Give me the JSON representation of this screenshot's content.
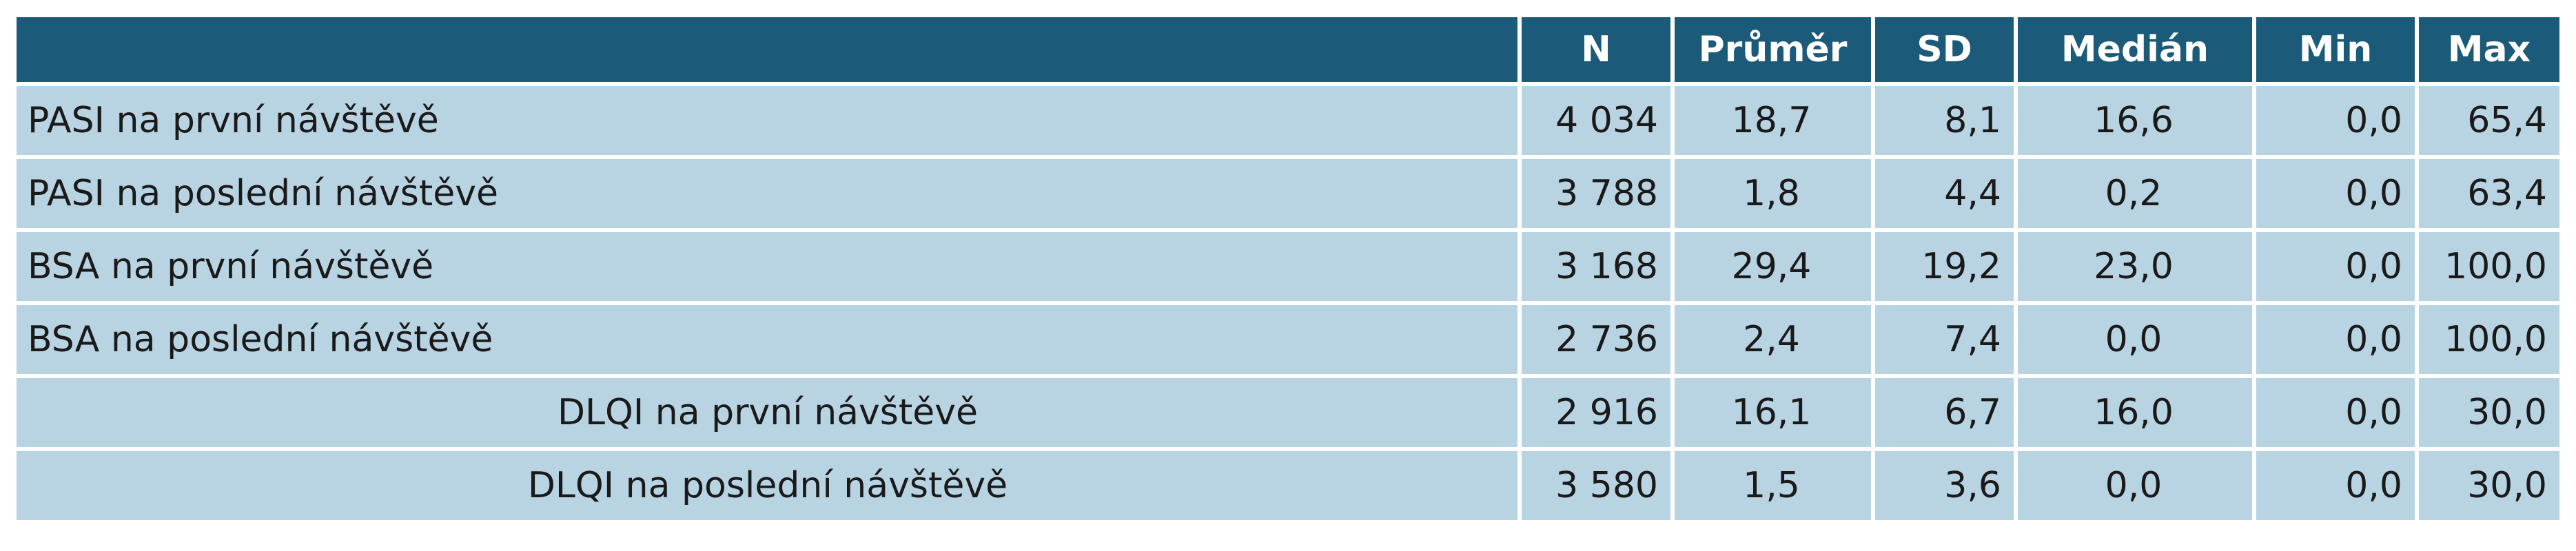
{
  "table": {
    "header": [
      "N",
      "Průměr",
      "SD",
      "Medián",
      "Min",
      "Max"
    ],
    "rows": [
      [
        "PASI na první návštěvě",
        "4 034",
        "18,7",
        "8,1",
        "16,6",
        "0,0",
        "65,4"
      ],
      [
        "PASI na poslední návštěvě",
        "3 788",
        "1,8",
        "4,4",
        "0,2",
        "0,0",
        "63,4"
      ],
      [
        "BSA na první návštěvě",
        "3 168",
        "29,4",
        "19,2",
        "23,0",
        "0,0",
        "100,0"
      ],
      [
        "BSA na poslední návštěvě",
        "2 736",
        "2,4",
        "7,4",
        "0,0",
        "0,0",
        "100,0"
      ],
      [
        "DLQI na první návštěvě",
        "2 916",
        "16,1",
        "6,7",
        "16,0",
        "0,0",
        "30,0"
      ],
      [
        "DLQI na poslední návštěvě",
        "3 580",
        "1,5",
        "3,6",
        "0,0",
        "0,0",
        "30,0"
      ]
    ]
  }
}
